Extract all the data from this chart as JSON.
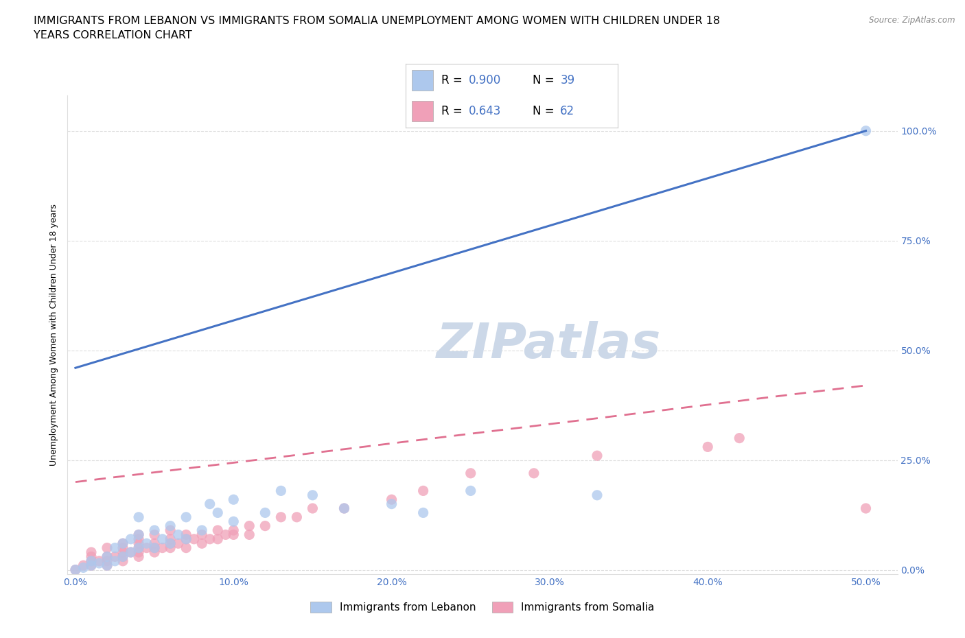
{
  "title_line1": "IMMIGRANTS FROM LEBANON VS IMMIGRANTS FROM SOMALIA UNEMPLOYMENT AMONG WOMEN WITH CHILDREN UNDER 18",
  "title_line2": "YEARS CORRELATION CHART",
  "source": "Source: ZipAtlas.com",
  "xlabel_ticks": [
    "0.0%",
    "10.0%",
    "20.0%",
    "30.0%",
    "40.0%",
    "50.0%"
  ],
  "xlabel_tick_vals": [
    0.0,
    0.1,
    0.2,
    0.3,
    0.4,
    0.5
  ],
  "ylabel": "Unemployment Among Women with Children Under 18 years",
  "ylabel_ticks": [
    "0.0%",
    "25.0%",
    "50.0%",
    "75.0%",
    "100.0%"
  ],
  "ylabel_tick_vals": [
    0.0,
    0.25,
    0.5,
    0.75,
    1.0
  ],
  "xlim": [
    -0.005,
    0.52
  ],
  "ylim": [
    -0.01,
    1.08
  ],
  "lebanon_R": 0.9,
  "lebanon_N": 39,
  "somalia_R": 0.643,
  "somalia_N": 62,
  "lebanon_color": "#adc8ed",
  "somalia_color": "#f0a0b8",
  "lebanon_line_color": "#4472c4",
  "somalia_line_color": "#e07090",
  "watermark": "ZIPatlas",
  "lebanon_scatter_x": [
    0.0,
    0.005,
    0.01,
    0.01,
    0.015,
    0.02,
    0.02,
    0.025,
    0.025,
    0.03,
    0.03,
    0.035,
    0.035,
    0.04,
    0.04,
    0.04,
    0.045,
    0.05,
    0.05,
    0.055,
    0.06,
    0.06,
    0.065,
    0.07,
    0.07,
    0.08,
    0.085,
    0.09,
    0.1,
    0.1,
    0.12,
    0.13,
    0.15,
    0.17,
    0.2,
    0.22,
    0.25,
    0.33,
    0.5
  ],
  "lebanon_scatter_y": [
    0.0,
    0.005,
    0.01,
    0.02,
    0.015,
    0.01,
    0.03,
    0.02,
    0.05,
    0.03,
    0.06,
    0.04,
    0.07,
    0.05,
    0.08,
    0.12,
    0.06,
    0.05,
    0.09,
    0.07,
    0.06,
    0.1,
    0.08,
    0.07,
    0.12,
    0.09,
    0.15,
    0.13,
    0.11,
    0.16,
    0.13,
    0.18,
    0.17,
    0.14,
    0.15,
    0.13,
    0.18,
    0.17,
    1.0
  ],
  "somalia_scatter_x": [
    0.0,
    0.005,
    0.01,
    0.01,
    0.01,
    0.01,
    0.015,
    0.02,
    0.02,
    0.02,
    0.02,
    0.025,
    0.03,
    0.03,
    0.03,
    0.03,
    0.03,
    0.035,
    0.04,
    0.04,
    0.04,
    0.04,
    0.04,
    0.04,
    0.045,
    0.05,
    0.05,
    0.05,
    0.05,
    0.055,
    0.06,
    0.06,
    0.06,
    0.06,
    0.065,
    0.07,
    0.07,
    0.07,
    0.075,
    0.08,
    0.08,
    0.085,
    0.09,
    0.09,
    0.095,
    0.1,
    0.1,
    0.11,
    0.11,
    0.12,
    0.13,
    0.14,
    0.15,
    0.17,
    0.2,
    0.22,
    0.25,
    0.29,
    0.33,
    0.4,
    0.42,
    0.5
  ],
  "somalia_scatter_y": [
    0.0,
    0.01,
    0.01,
    0.02,
    0.03,
    0.04,
    0.02,
    0.01,
    0.02,
    0.03,
    0.05,
    0.03,
    0.02,
    0.03,
    0.04,
    0.05,
    0.06,
    0.04,
    0.03,
    0.04,
    0.05,
    0.06,
    0.07,
    0.08,
    0.05,
    0.04,
    0.05,
    0.06,
    0.08,
    0.05,
    0.05,
    0.06,
    0.07,
    0.09,
    0.06,
    0.05,
    0.07,
    0.08,
    0.07,
    0.06,
    0.08,
    0.07,
    0.07,
    0.09,
    0.08,
    0.08,
    0.09,
    0.08,
    0.1,
    0.1,
    0.12,
    0.12,
    0.14,
    0.14,
    0.16,
    0.18,
    0.22,
    0.22,
    0.26,
    0.28,
    0.3,
    0.14
  ],
  "lebanon_line_x": [
    0.0,
    0.5
  ],
  "lebanon_line_y": [
    0.46,
    1.0
  ],
  "somalia_line_x": [
    0.0,
    0.5
  ],
  "somalia_line_y": [
    0.2,
    0.42
  ],
  "background_color": "#ffffff",
  "grid_color": "#dddddd",
  "title_fontsize": 11.5,
  "axis_label_fontsize": 9,
  "tick_fontsize": 10,
  "watermark_fontsize": 52,
  "watermark_color": "#ccd8e8",
  "axis_color": "#4472c4"
}
